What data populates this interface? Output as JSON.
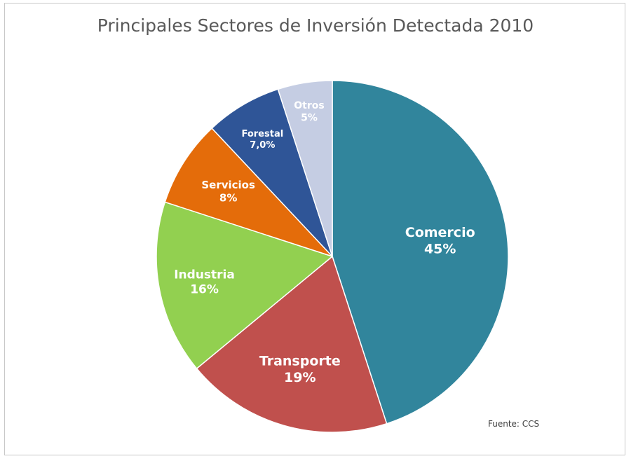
{
  "chart_data": {
    "type": "pie",
    "title": "Principales Sectores de Inversión Detectada 2010",
    "source": "Fuente: CCS",
    "slices": [
      {
        "label": "Comercio",
        "value": 45,
        "value_label": "45%",
        "color": "#31859c",
        "text_color": "#ffffff"
      },
      {
        "label": "Transporte",
        "value": 19,
        "value_label": "19%",
        "color": "#c0504d",
        "text_color": "#ffffff"
      },
      {
        "label": "Industria",
        "value": 16,
        "value_label": "16%",
        "color": "#92d050",
        "text_color": "#ffffff"
      },
      {
        "label": "Servicios",
        "value": 8,
        "value_label": "8%",
        "color": "#e46c0a",
        "text_color": "#ffffff"
      },
      {
        "label": "Forestal",
        "value": 7,
        "value_label": "7,0%",
        "color": "#2f5597",
        "text_color": "#ffffff"
      },
      {
        "label": "Otros",
        "value": 5,
        "value_label": "5%",
        "color": "#c5cde3",
        "text_color": "#ffffff"
      }
    ]
  }
}
